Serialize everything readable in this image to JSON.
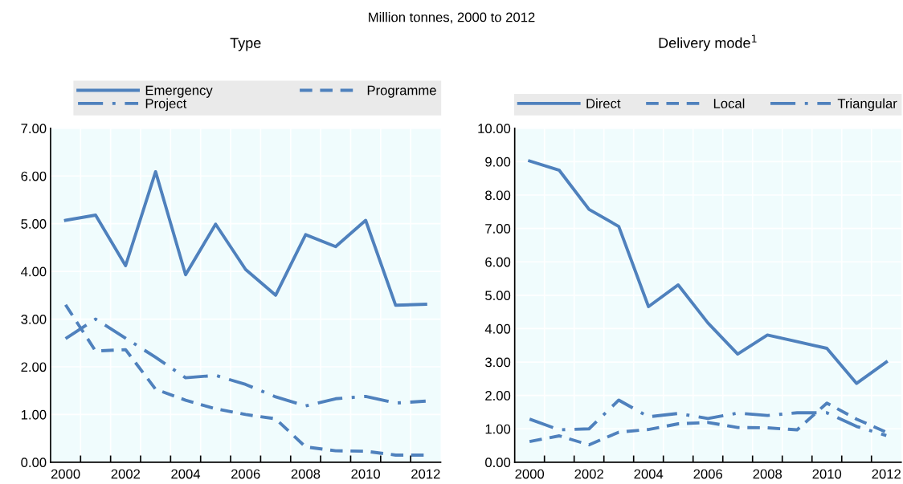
{
  "chart_data": [
    {
      "type": "line",
      "title": "Type",
      "annotations": [
        "Million tonnes, 2000 to 2012"
      ],
      "categories": [
        "2000",
        null,
        "2002",
        null,
        "2004",
        null,
        "2006",
        null,
        "2008",
        null,
        "2010",
        null,
        "2012"
      ],
      "series": [
        {
          "name": "Emergency",
          "color": "#4f81bd",
          "line_style": "solid",
          "values": [
            5.07,
            5.18,
            4.12,
            6.09,
            3.93,
            4.99,
            4.04,
            3.5,
            4.77,
            4.52,
            5.07,
            3.29,
            3.31
          ]
        },
        {
          "name": "Programme",
          "color": "#4f81bd",
          "line_style": "dashed",
          "values": [
            3.3,
            2.33,
            2.36,
            1.53,
            1.3,
            1.12,
            1.0,
            0.91,
            0.32,
            0.24,
            0.23,
            0.15,
            0.15
          ]
        },
        {
          "name": "Project",
          "color": "#4f81bd",
          "line_style": "dashdot",
          "values": [
            2.59,
            3.0,
            2.6,
            2.2,
            1.77,
            1.82,
            1.63,
            1.37,
            1.18,
            1.33,
            1.38,
            1.24,
            1.28
          ]
        }
      ],
      "ylim": [
        0,
        7
      ],
      "yticks": [
        {
          "value": 0,
          "label": "0.00"
        },
        {
          "value": 1,
          "label": "1.00"
        },
        {
          "value": 2,
          "label": "2.00"
        },
        {
          "value": 3,
          "label": "3.00"
        },
        {
          "value": 4,
          "label": "4.00"
        },
        {
          "value": 5,
          "label": "5.00"
        },
        {
          "value": 6,
          "label": "6.00"
        },
        {
          "value": 7,
          "label": "7.00"
        }
      ],
      "grid": true,
      "legend": "top"
    },
    {
      "type": "line",
      "title": "Delivery mode$^{1}$",
      "categories": [
        "2000",
        null,
        "2002",
        null,
        "2004",
        null,
        "2006",
        null,
        "2008",
        null,
        "2010",
        null,
        "2012"
      ],
      "series": [
        {
          "name": "Direct",
          "color": "#4f81bd",
          "line_style": "solid",
          "values": [
            9.02,
            8.74,
            7.57,
            7.06,
            4.66,
            5.31,
            4.17,
            3.24,
            3.81,
            3.61,
            3.41,
            2.36,
            3.0
          ]
        },
        {
          "name": "Local",
          "color": "#4f81bd",
          "line_style": "dashed",
          "values": [
            0.62,
            0.79,
            0.52,
            0.9,
            0.98,
            1.15,
            1.19,
            1.04,
            1.03,
            0.97,
            1.77,
            1.29,
            0.9
          ]
        },
        {
          "name": "Triangular",
          "color": "#4f81bd",
          "line_style": "dashdot",
          "values": [
            1.29,
            0.97,
            1.0,
            1.86,
            1.36,
            1.46,
            1.31,
            1.47,
            1.4,
            1.48,
            1.48,
            1.07,
            0.8
          ]
        }
      ],
      "ylim": [
        0,
        10
      ],
      "yticks": [
        {
          "value": 0,
          "label": "0.00"
        },
        {
          "value": 1,
          "label": "1.00"
        },
        {
          "value": 2,
          "label": "2.00"
        },
        {
          "value": 3,
          "label": "3.00"
        },
        {
          "value": 4,
          "label": "4.00"
        },
        {
          "value": 5,
          "label": "5.00"
        },
        {
          "value": 6,
          "label": "6.00"
        },
        {
          "value": 7,
          "label": "7.00"
        },
        {
          "value": 8,
          "label": "8.00"
        },
        {
          "value": 9,
          "label": "9.00"
        },
        {
          "value": 10,
          "label": "10.00"
        }
      ],
      "grid": true,
      "legend": "top"
    }
  ]
}
